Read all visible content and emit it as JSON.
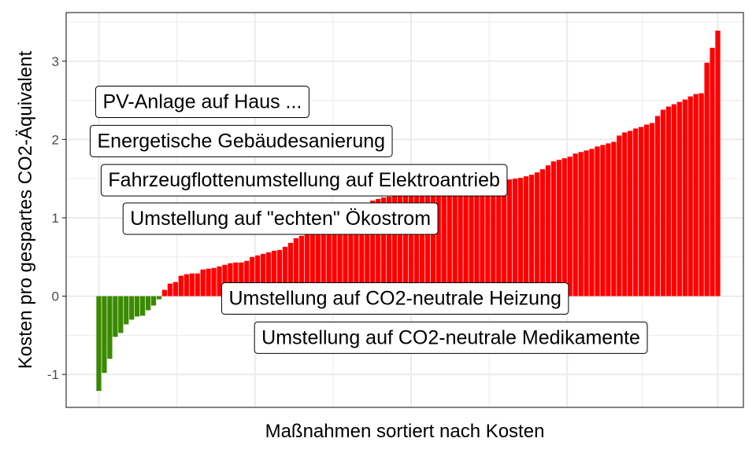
{
  "chart_data": {
    "type": "bar",
    "xlabel": "Maßnahmen sortiert nach Kosten",
    "ylabel": "Kosten pro gespartes CO2-Äquivalent",
    "ylim": [
      -1.42,
      3.62
    ],
    "y_ticks": [
      -1,
      0,
      1,
      2,
      3
    ],
    "y_tick_labels": [
      "-1",
      "0",
      "1",
      "2",
      "3"
    ],
    "grid": true,
    "colors": {
      "negative": "#3a8a00",
      "positive": "#ff0000",
      "grid": "#ebebeb",
      "panel_border": "#333333"
    },
    "values": [
      -1.21,
      -0.98,
      -0.8,
      -0.52,
      -0.47,
      -0.36,
      -0.3,
      -0.26,
      -0.25,
      -0.18,
      -0.12,
      -0.04,
      0.08,
      0.16,
      0.18,
      0.26,
      0.28,
      0.29,
      0.29,
      0.34,
      0.35,
      0.36,
      0.38,
      0.4,
      0.42,
      0.43,
      0.43,
      0.45,
      0.5,
      0.52,
      0.54,
      0.56,
      0.58,
      0.59,
      0.63,
      0.68,
      0.74,
      0.77,
      0.8,
      0.84,
      0.88,
      0.92,
      0.96,
      1.0,
      1.04,
      1.07,
      1.1,
      1.13,
      1.16,
      1.19,
      1.22,
      1.24,
      1.26,
      1.27,
      1.28,
      1.29,
      1.3,
      1.32,
      1.33,
      1.34,
      1.35,
      1.36,
      1.37,
      1.38,
      1.39,
      1.4,
      1.41,
      1.42,
      1.43,
      1.44,
      1.45,
      1.46,
      1.46,
      1.47,
      1.48,
      1.49,
      1.5,
      1.51,
      1.53,
      1.55,
      1.58,
      1.62,
      1.67,
      1.72,
      1.74,
      1.76,
      1.78,
      1.82,
      1.84,
      1.86,
      1.88,
      1.91,
      1.93,
      1.95,
      1.97,
      2.05,
      2.09,
      2.11,
      2.14,
      2.16,
      2.19,
      2.21,
      2.3,
      2.38,
      2.42,
      2.45,
      2.48,
      2.51,
      2.55,
      2.58,
      2.59,
      2.98,
      3.17,
      3.39
    ],
    "annotations": [
      {
        "text": "PV-Anlage auf Haus ...",
        "index": 1,
        "y": 2.48
      },
      {
        "text": "Energetische Gebäudesanierung",
        "index": 0,
        "y": 1.98
      },
      {
        "text": "Fahrzeugflottenumstellung auf Elektroantrieb",
        "index": 2,
        "y": 1.48
      },
      {
        "text": "Umstellung auf \"echten\" Ökostrom",
        "index": 6,
        "y": 0.99
      },
      {
        "text": "Umstellung auf CO2-neutrale Heizung",
        "index": 24,
        "y": -0.03
      },
      {
        "text": "Umstellung auf CO2-neutrale Medikamente",
        "index": 30,
        "y": -0.53
      }
    ]
  }
}
